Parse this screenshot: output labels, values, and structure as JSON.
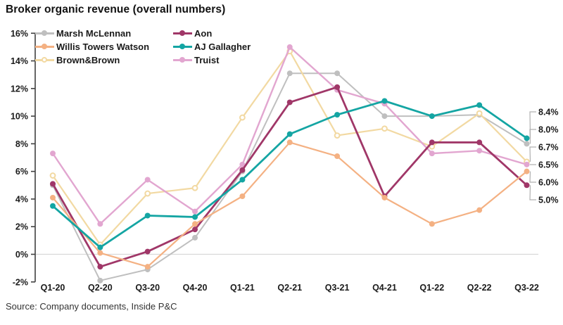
{
  "title": "Broker organic revenue (overall numbers)",
  "source": "Source: Company documents, Inside P&C",
  "chart_data": {
    "type": "line",
    "title": "Broker organic revenue (overall numbers)",
    "categories": [
      "Q1-20",
      "Q2-20",
      "Q3-20",
      "Q4-20",
      "Q1-21",
      "Q2-21",
      "Q3-21",
      "Q4-21",
      "Q1-22",
      "Q2-22",
      "Q3-22"
    ],
    "series": [
      {
        "name": "Marsh McLennan",
        "color": "#bfbfbf",
        "marker": "filled",
        "end_label": "8.0%",
        "values": [
          5.0,
          -1.9,
          -1.1,
          1.2,
          6.0,
          13.1,
          13.1,
          10.0,
          10.0,
          10.1,
          8.0
        ]
      },
      {
        "name": "Willis Towers Watson",
        "color": "#f4b183",
        "marker": "filled",
        "end_label": "6.0%",
        "values": [
          4.1,
          0.1,
          -0.9,
          2.2,
          4.2,
          8.1,
          7.1,
          4.1,
          2.2,
          3.2,
          6.0
        ]
      },
      {
        "name": "Brown&Brown",
        "color": "#f2d9a2",
        "marker": "hollow",
        "end_label": "6.7%",
        "values": [
          5.7,
          0.7,
          4.4,
          4.8,
          9.9,
          14.7,
          8.6,
          9.1,
          7.8,
          10.2,
          6.7
        ]
      },
      {
        "name": "Aon",
        "color": "#a03768",
        "marker": "filled",
        "end_label": "5.0%",
        "values": [
          5.1,
          -0.9,
          0.2,
          1.8,
          6.1,
          11.0,
          12.1,
          4.2,
          8.1,
          8.1,
          5.0
        ]
      },
      {
        "name": "AJ Gallagher",
        "color": "#14a5a3",
        "marker": "filled",
        "end_label": "8.4%",
        "values": [
          3.5,
          0.5,
          2.8,
          2.7,
          5.4,
          8.7,
          10.1,
          11.1,
          10.0,
          10.8,
          8.4
        ]
      },
      {
        "name": "Truist",
        "color": "#e2a6d0",
        "marker": "filled",
        "end_label": "6.5%",
        "values": [
          7.3,
          2.2,
          5.4,
          3.1,
          6.5,
          15.0,
          11.9,
          10.9,
          7.3,
          7.5,
          6.5
        ]
      }
    ],
    "ylim": [
      -2,
      16
    ],
    "ytick_labels": [
      "16%",
      "14%",
      "12%",
      "10%",
      "8%",
      "6%",
      "4%",
      "2%",
      "0%",
      "-2%"
    ],
    "xlabel": "",
    "ylabel": "",
    "grid": "horizontal line at 0% only",
    "legend_position": "top-left inside plot, two columns",
    "end_labels_right": [
      "8.4%",
      "8.0%",
      "6.7%",
      "6.5%",
      "6.0%",
      "5.0%"
    ]
  },
  "colors": {
    "axis": "#404040",
    "gridline": "#d9d9d9",
    "leader_line": "#b0b0b0",
    "text": "#1a1a1a"
  }
}
